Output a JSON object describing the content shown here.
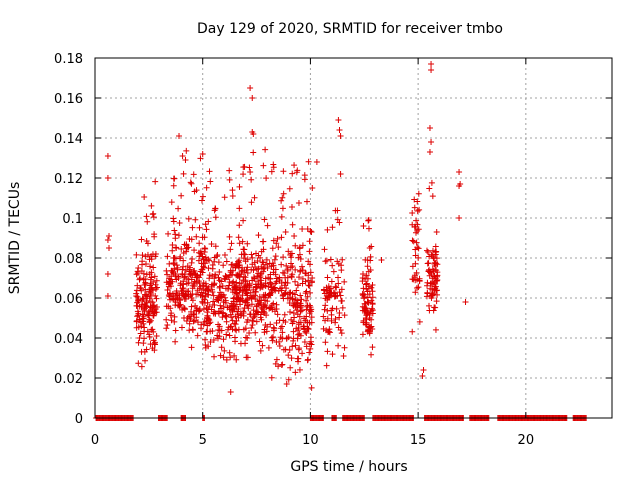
{
  "chart_data": {
    "type": "scatter",
    "title": "Day 129 of 2020, SRMTID for receiver tmbo",
    "xlabel": "GPS time / hours",
    "ylabel": "SRMTID / TECUs",
    "xlim": [
      0,
      24
    ],
    "ylim": [
      0,
      0.18
    ],
    "grid": true,
    "marker": "+",
    "color": "#dd0000",
    "x_ticks": [
      0,
      5,
      10,
      15,
      20
    ],
    "x_tick_labels": [
      "0",
      "5",
      "10",
      "15",
      "20"
    ],
    "y_ticks": [
      0,
      0.02,
      0.04,
      0.06,
      0.08,
      0.1,
      0.12,
      0.14,
      0.16,
      0.18
    ],
    "y_tick_labels": [
      "0",
      "0.02",
      "0.04",
      "0.06",
      "0.08",
      "0.1",
      "0.12",
      "0.14",
      "0.16",
      "0.18"
    ],
    "zero_segments": [
      [
        0.05,
        1.8
      ],
      [
        2.95,
        3.35
      ],
      [
        4.0,
        4.2
      ],
      [
        5.0,
        5.1
      ],
      [
        10.0,
        10.6
      ],
      [
        11.0,
        11.2
      ],
      [
        11.5,
        12.5
      ],
      [
        12.9,
        14.8
      ],
      [
        15.3,
        17.1
      ],
      [
        17.4,
        18.3
      ],
      [
        18.7,
        21.9
      ],
      [
        22.2,
        22.8
      ]
    ],
    "outliers": [
      {
        "x": 0.6,
        "y": 0.131
      },
      {
        "x": 0.6,
        "y": 0.12
      },
      {
        "x": 0.65,
        "y": 0.091
      },
      {
        "x": 0.6,
        "y": 0.089
      },
      {
        "x": 0.65,
        "y": 0.085
      },
      {
        "x": 0.6,
        "y": 0.072
      },
      {
        "x": 0.6,
        "y": 0.061
      },
      {
        "x": 3.9,
        "y": 0.141
      },
      {
        "x": 4.2,
        "y": 0.129
      },
      {
        "x": 5.0,
        "y": 0.132
      },
      {
        "x": 7.2,
        "y": 0.165
      },
      {
        "x": 7.3,
        "y": 0.16
      },
      {
        "x": 7.3,
        "y": 0.143
      },
      {
        "x": 7.35,
        "y": 0.142
      },
      {
        "x": 10.3,
        "y": 0.128
      },
      {
        "x": 11.3,
        "y": 0.149
      },
      {
        "x": 11.35,
        "y": 0.144
      },
      {
        "x": 11.4,
        "y": 0.141
      },
      {
        "x": 11.4,
        "y": 0.122
      },
      {
        "x": 13.3,
        "y": 0.079
      },
      {
        "x": 15.6,
        "y": 0.177
      },
      {
        "x": 15.6,
        "y": 0.174
      },
      {
        "x": 15.55,
        "y": 0.145
      },
      {
        "x": 15.6,
        "y": 0.138
      },
      {
        "x": 15.55,
        "y": 0.133
      },
      {
        "x": 15.2,
        "y": 0.021
      },
      {
        "x": 15.25,
        "y": 0.024
      },
      {
        "x": 16.9,
        "y": 0.123
      },
      {
        "x": 16.95,
        "y": 0.117
      },
      {
        "x": 16.9,
        "y": 0.116
      },
      {
        "x": 16.9,
        "y": 0.1
      },
      {
        "x": 17.2,
        "y": 0.058
      },
      {
        "x": 6.3,
        "y": 0.013
      },
      {
        "x": 8.9,
        "y": 0.017
      }
    ],
    "clusters": [
      {
        "x_range": [
          1.9,
          2.9
        ],
        "y_range": [
          0.025,
          0.12
        ],
        "y_mean": 0.057,
        "n": 170
      },
      {
        "x_range": [
          3.3,
          5.0
        ],
        "y_range": [
          0.035,
          0.135
        ],
        "y_mean": 0.066,
        "n": 250
      },
      {
        "x_range": [
          5.0,
          6.6
        ],
        "y_range": [
          0.02,
          0.125
        ],
        "y_mean": 0.06,
        "n": 250
      },
      {
        "x_range": [
          6.6,
          8.2
        ],
        "y_range": [
          0.03,
          0.135
        ],
        "y_mean": 0.064,
        "n": 260
      },
      {
        "x_range": [
          8.2,
          10.1
        ],
        "y_range": [
          0.015,
          0.13
        ],
        "y_mean": 0.058,
        "n": 270
      },
      {
        "x_range": [
          10.6,
          11.6
        ],
        "y_range": [
          0.025,
          0.105
        ],
        "y_mean": 0.06,
        "n": 90
      },
      {
        "x_range": [
          12.4,
          12.9
        ],
        "y_range": [
          0.03,
          0.11
        ],
        "y_mean": 0.058,
        "n": 90
      },
      {
        "x_range": [
          14.7,
          15.1
        ],
        "y_range": [
          0.035,
          0.12
        ],
        "y_mean": 0.08,
        "n": 40
      },
      {
        "x_range": [
          15.4,
          15.9
        ],
        "y_range": [
          0.04,
          0.12
        ],
        "y_mean": 0.07,
        "n": 80
      }
    ]
  }
}
